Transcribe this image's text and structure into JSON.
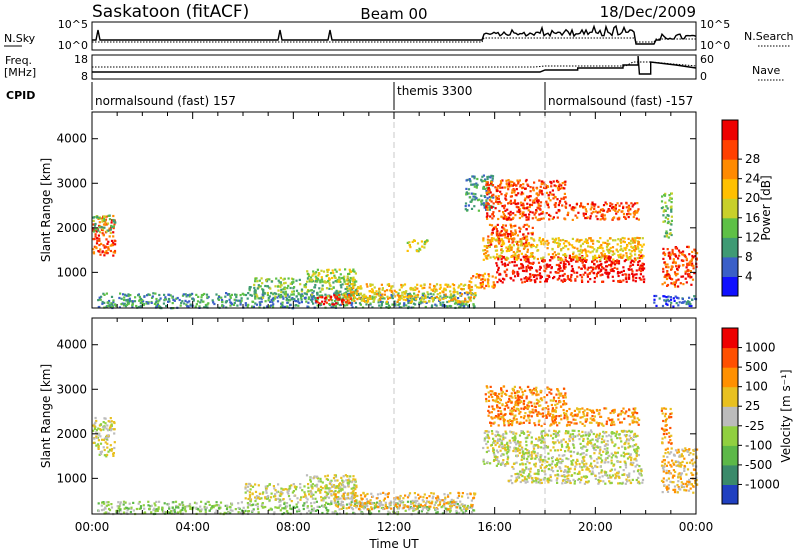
{
  "header": {
    "site": "Saskatoon (fitACF)",
    "beam": "Beam 00",
    "date": "18/Dec/2009"
  },
  "nsky_panel": {
    "left_label": "N.Sky",
    "right_label": "N.Search",
    "left_ticks": [
      "10^5",
      "10^0"
    ],
    "right_ticks": [
      "10^5",
      "10^0"
    ]
  },
  "freq_panel": {
    "left_label_1": "Freq.",
    "left_label_2": "[MHz]",
    "right_label": "Nave",
    "left_ticks": [
      "18",
      "8"
    ],
    "right_ticks": [
      "60",
      "0"
    ]
  },
  "cpid": {
    "label": "CPID",
    "segments": [
      {
        "name": "normalsound (fast) 157",
        "start_h": 0,
        "end_h": 12
      },
      {
        "name": "themis 3300",
        "start_h": 12,
        "end_h": 18
      },
      {
        "name": "normalsound (fast) -157",
        "start_h": 18,
        "end_h": 24
      }
    ]
  },
  "chart_data": [
    {
      "type": "heatmap",
      "name": "power",
      "xlabel": "",
      "ylabel": "Slant Range [km]",
      "xlim": [
        0,
        24
      ],
      "ylim": [
        200,
        4600
      ],
      "yticks": [
        "1000",
        "2000",
        "3000",
        "4000"
      ],
      "colorbar": {
        "label": "Power [dB]",
        "ticks": [
          "4",
          "8",
          "12",
          "16",
          "20",
          "24",
          "28"
        ],
        "colors": [
          "#1010ff",
          "#3a5fc8",
          "#3f9a74",
          "#5ec046",
          "#c8d02a",
          "#ffc000",
          "#ff8a00",
          "#ff4000",
          "#ee0000"
        ]
      },
      "regions": [
        {
          "t": [
            0.0,
            0.9
          ],
          "r": [
            1400,
            2300
          ],
          "level": 7
        },
        {
          "t": [
            0.0,
            0.9
          ],
          "r": [
            1900,
            2300
          ],
          "level": 3
        },
        {
          "t": [
            0.2,
            15.2
          ],
          "r": [
            220,
            560
          ],
          "level": 2
        },
        {
          "t": [
            6.2,
            10.5
          ],
          "r": [
            430,
            900
          ],
          "level": 3
        },
        {
          "t": [
            8.8,
            10.3
          ],
          "r": [
            300,
            520
          ],
          "level": 8
        },
        {
          "t": [
            8.5,
            10.5
          ],
          "r": [
            800,
            1100
          ],
          "level": 4
        },
        {
          "t": [
            10.0,
            15.2
          ],
          "r": [
            350,
            760
          ],
          "level": 5
        },
        {
          "t": [
            12.5,
            13.3
          ],
          "r": [
            1500,
            1750
          ],
          "level": 4
        },
        {
          "t": [
            14.9,
            16.0
          ],
          "r": [
            650,
            1000
          ],
          "level": 6
        },
        {
          "t": [
            14.8,
            15.9
          ],
          "r": [
            2400,
            3200
          ],
          "level": 2
        },
        {
          "t": [
            15.6,
            21.7
          ],
          "r": [
            2200,
            2600
          ],
          "level": 7
        },
        {
          "t": [
            15.6,
            18.8
          ],
          "r": [
            2600,
            3100
          ],
          "level": 7
        },
        {
          "t": [
            15.6,
            17.5
          ],
          "r": [
            1600,
            2100
          ],
          "level": 7
        },
        {
          "t": [
            16.0,
            21.9
          ],
          "r": [
            800,
            1400
          ],
          "level": 8
        },
        {
          "t": [
            15.5,
            21.9
          ],
          "r": [
            1300,
            1800
          ],
          "level": 5
        },
        {
          "t": [
            22.6,
            24.0
          ],
          "r": [
            700,
            1600
          ],
          "level": 7
        },
        {
          "t": [
            22.3,
            24.0
          ],
          "r": [
            250,
            500
          ],
          "level": 1
        },
        {
          "t": [
            22.6,
            23.0
          ],
          "r": [
            1800,
            2800
          ],
          "level": 3
        }
      ]
    },
    {
      "type": "heatmap",
      "name": "velocity",
      "xlabel": "Time UT",
      "ylabel": "Slant Range [km]",
      "xlim": [
        0,
        24
      ],
      "ylim": [
        200,
        4600
      ],
      "xticks": [
        "00:00",
        "04:00",
        "08:00",
        "12:00",
        "16:00",
        "20:00",
        "00:00"
      ],
      "yticks": [
        "1000",
        "2000",
        "3000",
        "4000"
      ],
      "colorbar": {
        "label": "Velocity [m s⁻¹]",
        "ticks": [
          "1000",
          "500",
          "100",
          "25",
          "-25",
          "-100",
          "-500",
          "-1000"
        ],
        "colors": [
          "#2040c0",
          "#3a8a6a",
          "#5cb848",
          "#90d040",
          "#bcbcbc",
          "#e8c020",
          "#ff9000",
          "#ff5000",
          "#ee0000"
        ]
      },
      "regions": [
        {
          "t": [
            0.0,
            0.9
          ],
          "r": [
            1500,
            2400
          ],
          "level": 4
        },
        {
          "t": [
            0.2,
            15.2
          ],
          "r": [
            220,
            500
          ],
          "level": 3
        },
        {
          "t": [
            6.0,
            10.5
          ],
          "r": [
            500,
            900
          ],
          "level": 4
        },
        {
          "t": [
            8.5,
            10.5
          ],
          "r": [
            780,
            1100
          ],
          "level": 4
        },
        {
          "t": [
            9.5,
            15.2
          ],
          "r": [
            330,
            700
          ],
          "level": 5
        },
        {
          "t": [
            15.6,
            21.7
          ],
          "r": [
            2200,
            2600
          ],
          "level": 6
        },
        {
          "t": [
            15.6,
            18.8
          ],
          "r": [
            2600,
            3100
          ],
          "level": 6
        },
        {
          "t": [
            15.5,
            21.7
          ],
          "r": [
            1300,
            2100
          ],
          "level": 4
        },
        {
          "t": [
            16.5,
            21.9
          ],
          "r": [
            900,
            1300
          ],
          "level": 4
        },
        {
          "t": [
            22.6,
            24.0
          ],
          "r": [
            700,
            1700
          ],
          "level": 5
        },
        {
          "t": [
            22.6,
            23.0
          ],
          "r": [
            1800,
            2600
          ],
          "level": 6
        }
      ]
    }
  ]
}
